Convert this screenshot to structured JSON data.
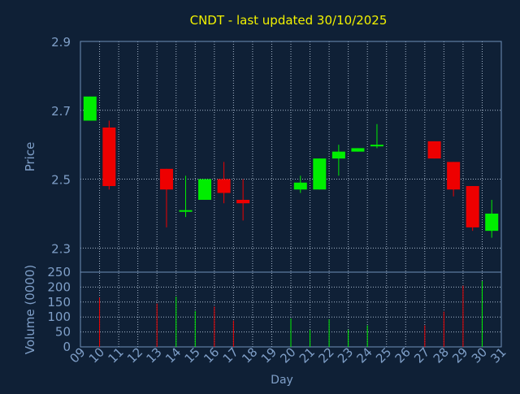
{
  "chart_data": [
    {
      "type": "candlestick",
      "title": "CNDT - last updated 30/10/2025",
      "ylabel": "Price",
      "ylim": [
        2.23,
        2.9
      ],
      "yticks": [
        "2.9",
        "2.7",
        "2.5",
        "2.3"
      ],
      "grid": true,
      "x": [
        "09",
        "10",
        "11",
        "12",
        "13",
        "14",
        "15",
        "16",
        "17",
        "18",
        "19",
        "20",
        "21",
        "22",
        "23",
        "24",
        "25",
        "26",
        "27",
        "28",
        "29",
        "30",
        "31"
      ],
      "candles": [
        {
          "day": "09",
          "open": 2.67,
          "high": 2.74,
          "low": 2.67,
          "close": 2.74
        },
        {
          "day": "10",
          "open": 2.65,
          "high": 2.67,
          "low": 2.47,
          "close": 2.48
        },
        {
          "day": "13",
          "open": 2.53,
          "high": 2.53,
          "low": 2.36,
          "close": 2.47
        },
        {
          "day": "14",
          "open": 2.41,
          "high": 2.51,
          "low": 2.39,
          "close": 2.41
        },
        {
          "day": "15",
          "open": 2.44,
          "high": 2.5,
          "low": 2.44,
          "close": 2.5
        },
        {
          "day": "16",
          "open": 2.5,
          "high": 2.55,
          "low": 2.43,
          "close": 2.46
        },
        {
          "day": "17",
          "open": 2.44,
          "high": 2.5,
          "low": 2.38,
          "close": 2.43
        },
        {
          "day": "20",
          "open": 2.47,
          "high": 2.51,
          "low": 2.46,
          "close": 2.49
        },
        {
          "day": "21",
          "open": 2.47,
          "high": 2.56,
          "low": 2.47,
          "close": 2.56
        },
        {
          "day": "22",
          "open": 2.56,
          "high": 2.6,
          "low": 2.51,
          "close": 2.58
        },
        {
          "day": "23",
          "open": 2.58,
          "high": 2.59,
          "low": 2.58,
          "close": 2.59
        },
        {
          "day": "24",
          "open": 2.6,
          "high": 2.66,
          "low": 2.59,
          "close": 2.6
        },
        {
          "day": "27",
          "open": 2.61,
          "high": 2.61,
          "low": 2.56,
          "close": 2.56
        },
        {
          "day": "28",
          "open": 2.55,
          "high": 2.55,
          "low": 2.45,
          "close": 2.47
        },
        {
          "day": "29",
          "open": 2.48,
          "high": 2.48,
          "low": 2.35,
          "close": 2.36
        },
        {
          "day": "30",
          "open": 2.35,
          "high": 2.44,
          "low": 2.33,
          "close": 2.4
        }
      ]
    },
    {
      "type": "bar",
      "ylabel": "Volume (0000)",
      "xlabel": "Day",
      "ylim": [
        0,
        250
      ],
      "yticks": [
        "250",
        "200",
        "150",
        "100",
        "50",
        "0"
      ],
      "grid": true,
      "x": [
        "09",
        "10",
        "11",
        "12",
        "13",
        "14",
        "15",
        "16",
        "17",
        "18",
        "19",
        "20",
        "21",
        "22",
        "23",
        "24",
        "25",
        "26",
        "27",
        "28",
        "29",
        "30",
        "31"
      ],
      "bars": [
        {
          "day": "10",
          "value": 165,
          "direction": "down"
        },
        {
          "day": "13",
          "value": 145,
          "direction": "down"
        },
        {
          "day": "14",
          "value": 168,
          "direction": "up"
        },
        {
          "day": "15",
          "value": 120,
          "direction": "up"
        },
        {
          "day": "16",
          "value": 135,
          "direction": "down"
        },
        {
          "day": "17",
          "value": 88,
          "direction": "down"
        },
        {
          "day": "20",
          "value": 95,
          "direction": "up"
        },
        {
          "day": "21",
          "value": 57,
          "direction": "up"
        },
        {
          "day": "22",
          "value": 92,
          "direction": "up"
        },
        {
          "day": "23",
          "value": 58,
          "direction": "up"
        },
        {
          "day": "24",
          "value": 72,
          "direction": "up"
        },
        {
          "day": "27",
          "value": 72,
          "direction": "down"
        },
        {
          "day": "28",
          "value": 118,
          "direction": "down"
        },
        {
          "day": "29",
          "value": 205,
          "direction": "down"
        },
        {
          "day": "30",
          "value": 220,
          "direction": "up"
        }
      ]
    }
  ],
  "colors": {
    "background": "#0f2036",
    "title": "#f2f200",
    "axis_text": "#7f9fc8",
    "frame": "#6f8fb8",
    "grid": "#a6b6ca",
    "up": "#00ee00",
    "down": "#ee0000"
  }
}
